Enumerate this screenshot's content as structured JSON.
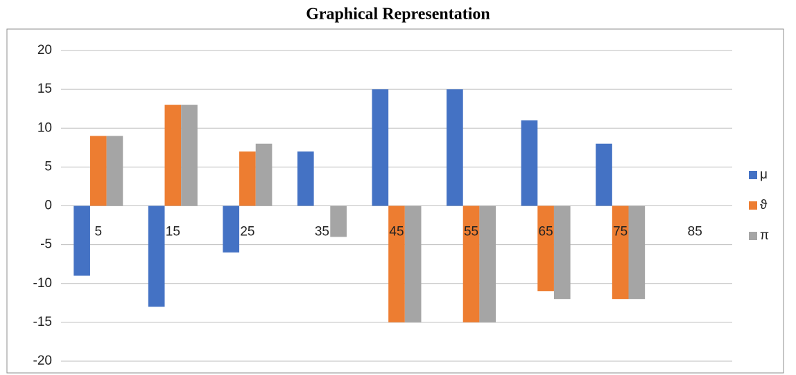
{
  "chart_data": {
    "type": "bar",
    "title": "Graphical Representation",
    "categories": [
      "5",
      "15",
      "25",
      "35",
      "45",
      "55",
      "65",
      "75",
      "85"
    ],
    "series": [
      {
        "name": "μ",
        "color": "#4472c4",
        "values": [
          -9,
          -13,
          -6,
          7,
          15,
          15,
          11,
          8,
          0
        ]
      },
      {
        "name": "ϑ",
        "color": "#ed7d31",
        "values": [
          9,
          13,
          7,
          0,
          -15,
          -15,
          -11,
          -12,
          0
        ]
      },
      {
        "name": "π",
        "color": "#a5a5a5",
        "values": [
          9,
          13,
          8,
          -4,
          -15,
          -15,
          -12,
          -12,
          0
        ]
      }
    ],
    "ylim": [
      -20,
      20
    ],
    "yticks": [
      -20,
      -15,
      -10,
      -5,
      0,
      5,
      10,
      15,
      20
    ],
    "grid": true,
    "legend": "right"
  }
}
